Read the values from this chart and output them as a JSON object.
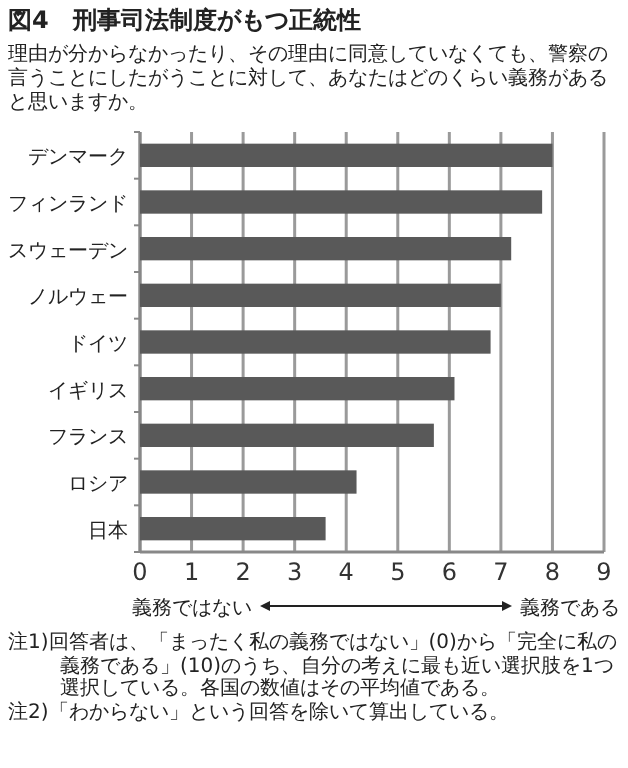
{
  "chart_data": {
    "type": "bar",
    "orientation": "horizontal",
    "title": "図4　刑事司法制度がもつ正統性",
    "subtitle": "理由が分からなかったり、その理由に同意していなくても、警察の言うことにしたがうことに対して、あなたはどのくらい義務があると思いますか。",
    "categories": [
      "デンマーク",
      "フィンランド",
      "スウェーデン",
      "ノルウェー",
      "ドイツ",
      "イギリス",
      "フランス",
      "ロシア",
      "日本"
    ],
    "values": [
      8.0,
      7.8,
      7.2,
      7.0,
      6.8,
      6.1,
      5.7,
      4.2,
      3.6
    ],
    "color": "#595959",
    "xlim": [
      0,
      9
    ],
    "xticks": [
      0,
      1,
      2,
      3,
      4,
      5,
      6,
      7,
      8,
      9
    ],
    "grid": "x",
    "annotations": [
      "義務ではない",
      "義務である",
      "注1)回答者は、「まったく私の義務ではない」(0)から「完全に私の義務である」(10)のうち、自分の考えに最も近い選択肢を1つ選択している。各国の数値はその平均値である。",
      "注2)「わからない」という回答を除いて算出している。"
    ]
  }
}
